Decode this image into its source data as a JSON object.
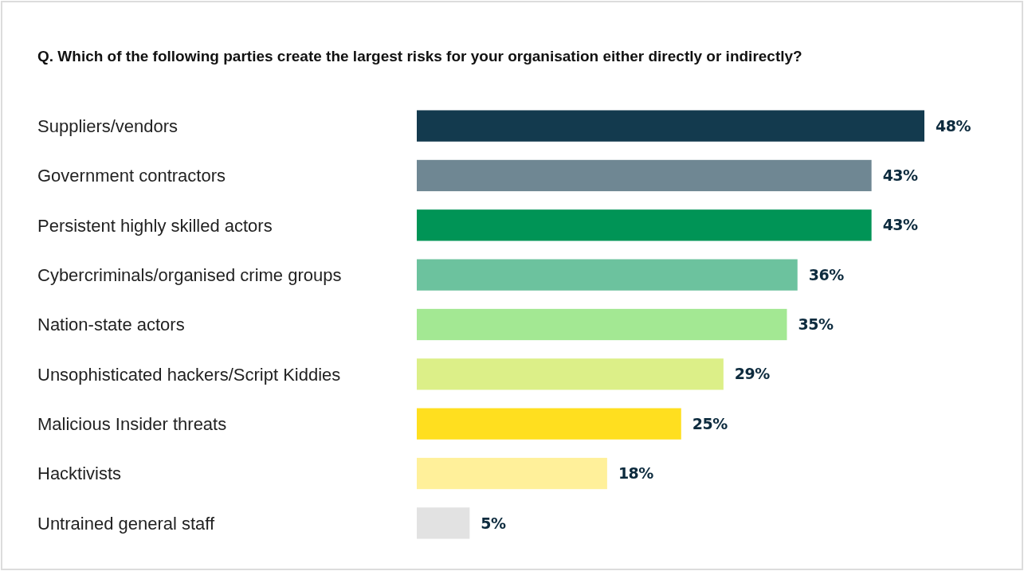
{
  "chart_data": {
    "type": "bar",
    "orientation": "horizontal",
    "title": "Q. Which of the following parties create the largest risks for your organisation either directly or indirectly?",
    "categories": [
      "Suppliers/vendors",
      "Government contractors",
      "Persistent highly skilled actors",
      "Cybercriminals/organised crime groups",
      "Nation-state actors",
      "Unsophisticated hackers/Script Kiddies",
      "Malicious Insider threats",
      "Hacktivists",
      "Untrained general staff"
    ],
    "values": [
      48,
      43,
      43,
      36,
      35,
      29,
      25,
      18,
      5
    ],
    "colors": [
      "#133a4e",
      "#6f8793",
      "#009456",
      "#6cc29e",
      "#a3e893",
      "#dcef88",
      "#ffdf1f",
      "#fff09a",
      "#e2e2e2"
    ],
    "value_labels": [
      "48%",
      "43%",
      "43%",
      "36%",
      "35%",
      "29%",
      "25%",
      "18%",
      "5%"
    ]
  }
}
